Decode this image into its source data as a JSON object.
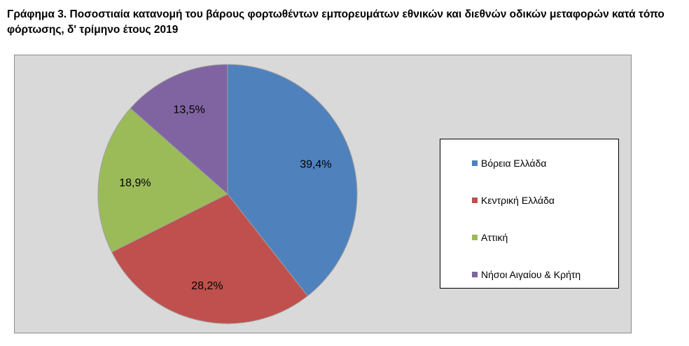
{
  "title": "Γράφημα 3. Ποσοστιαία κατανομή του βάρους φορτωθέντων εμπορευμάτων εθνικών και διεθνών οδικών μεταφορών κατά τόπο φόρτωσης, δ' τρίμηνο έτους 2019",
  "chart_data": {
    "type": "pie",
    "title": "Γράφημα 3. Ποσοστιαία κατανομή του βάρους φορτωθέντων εμπορευμάτων εθνικών και διεθνών οδικών μεταφορών κατά τόπο φόρτωσης, δ' τρίμηνο έτους 2019",
    "categories": [
      "Βόρεια Ελλάδα",
      "Κεντρική Ελλάδα",
      "Αττική",
      "Νήσοι Αιγαίου & Κρήτη"
    ],
    "values": [
      39.4,
      28.2,
      18.9,
      13.5
    ],
    "data_labels": [
      "39,4%",
      "28,2%",
      "18,9%",
      "13,5%"
    ],
    "colors": [
      "#4f81bd",
      "#c0504d",
      "#9bbb59",
      "#8064a2"
    ],
    "legend_position": "right",
    "plot_background": "#d9d9d9"
  }
}
